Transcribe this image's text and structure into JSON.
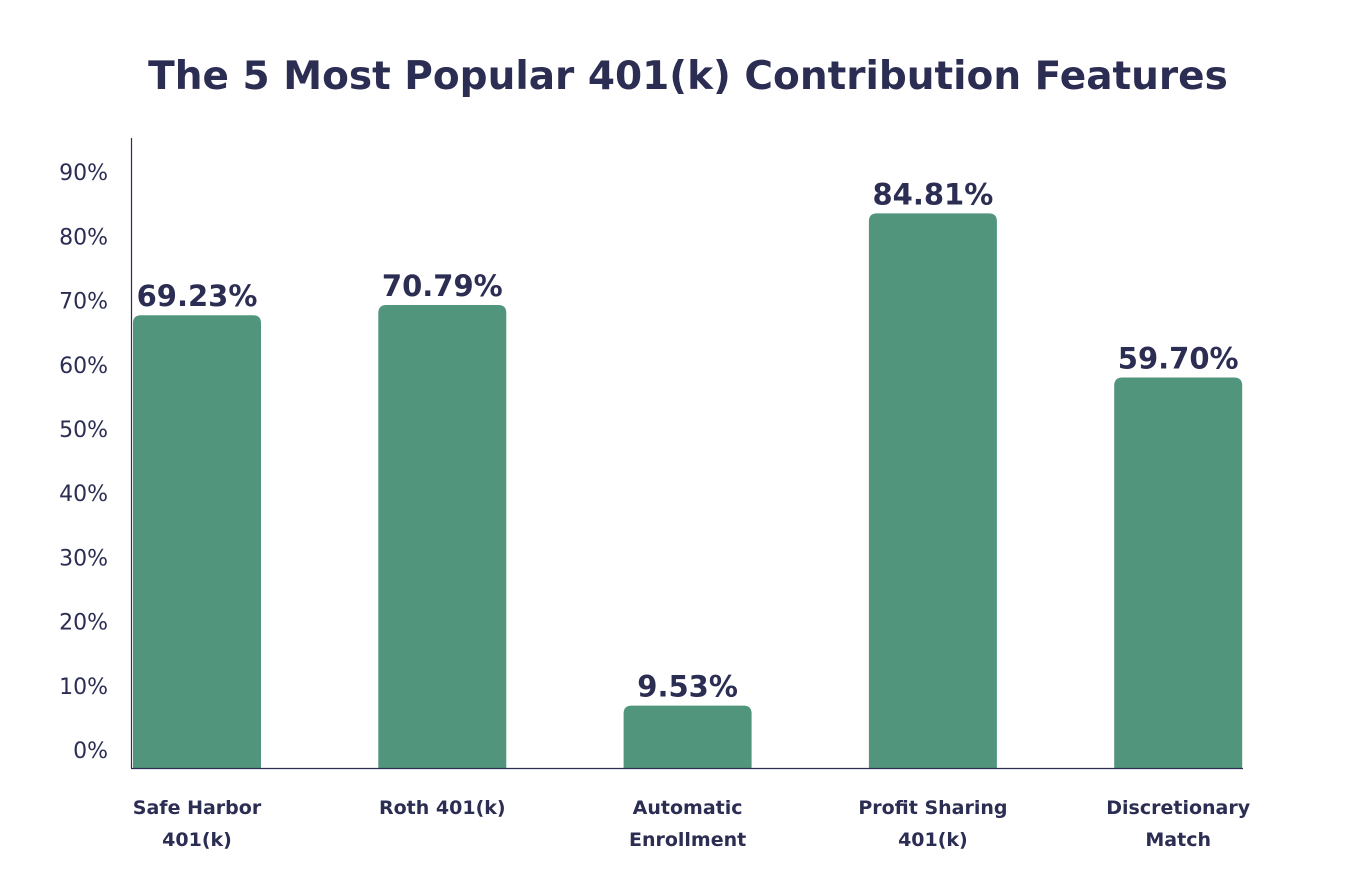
{
  "chart_data": {
    "type": "bar",
    "title": "The 5 Most Popular 401(k) Contribution Features",
    "xlabel": "",
    "ylabel": "",
    "categories": [
      [
        "Safe Harbor",
        "401(k)"
      ],
      [
        "Roth 401(k)"
      ],
      [
        "Automatic",
        "Enrollment"
      ],
      [
        "Profit Sharing",
        "401(k)"
      ],
      [
        "Discretionary",
        "Match"
      ]
    ],
    "values": [
      69.23,
      70.79,
      9.53,
      84.81,
      59.7
    ],
    "data_labels": [
      "69.23%",
      "70.79%",
      "9.53%",
      "84.81%",
      "59.70%"
    ],
    "yticks": [
      "0%",
      "10%",
      "20%",
      "30%",
      "40%",
      "50%",
      "60%",
      "70%",
      "80%",
      "90%"
    ],
    "ylim": [
      0,
      90
    ],
    "grid": false,
    "legend": "none",
    "colors": {
      "bar": "#50957c",
      "text": "#2b2d52",
      "axis": "#2b2d52"
    }
  }
}
